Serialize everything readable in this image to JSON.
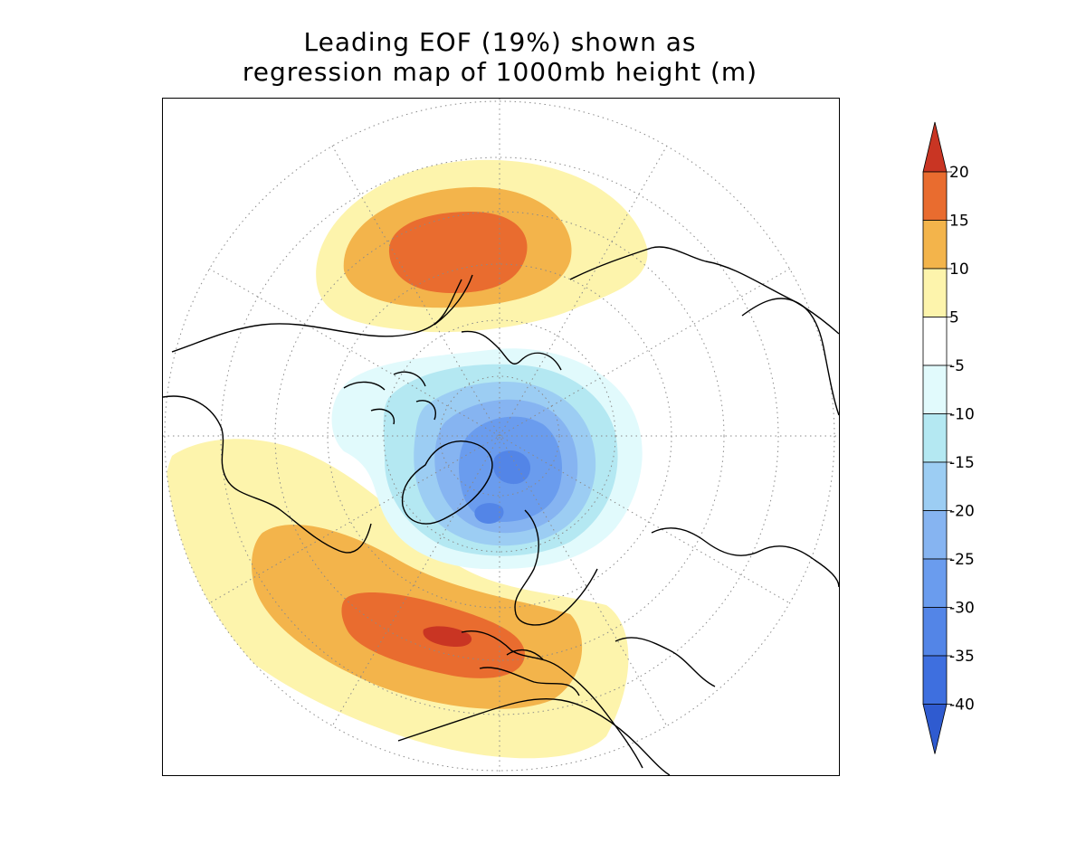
{
  "title": {
    "line1": "Leading EOF (19%) shown as",
    "line2": "regression map of 1000mb height (m)"
  },
  "colorbar": {
    "labels": [
      "20",
      "15",
      "10",
      "5",
      "-5",
      "-10",
      "-15",
      "-20",
      "-25",
      "-30",
      "-35",
      "-40"
    ],
    "colors": [
      "#c93523",
      "#e96c2f",
      "#f3b44b",
      "#fdf4ac",
      "#ffffff",
      "#e1fafc",
      "#b4e8f2",
      "#9ccdf3",
      "#86b4f1",
      "#6a9cee",
      "#5385e7",
      "#3e6fdf",
      "#2f5bd0"
    ]
  },
  "map": {
    "projection": "north-polar-stereographic",
    "field_colors": {
      "pos20": "#c93523",
      "pos15": "#e96c2f",
      "pos10": "#f3b44b",
      "pos5": "#fdf4ac",
      "neg5": "#e1fafc",
      "neg10": "#b4e8f2",
      "neg15": "#9ccdf3",
      "neg20": "#86b4f1",
      "neg25": "#6a9cee",
      "neg30": "#5385e7"
    }
  }
}
